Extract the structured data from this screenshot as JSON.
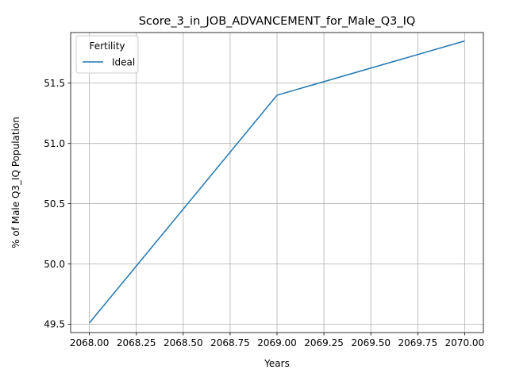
{
  "chart_data": {
    "type": "line",
    "title": "Score_3_in_JOB_ADVANCEMENT_for_Male_Q3_IQ",
    "xlabel": "Years",
    "ylabel": "% of Male Q3_IQ Population",
    "xlim": [
      2067.9,
      2070.1
    ],
    "ylim": [
      49.43,
      51.92
    ],
    "xticks": [
      2068.0,
      2068.25,
      2068.5,
      2068.75,
      2069.0,
      2069.25,
      2069.5,
      2069.75,
      2070.0
    ],
    "xtick_labels": [
      "2068.00",
      "2068.25",
      "2068.50",
      "2068.75",
      "2069.00",
      "2069.25",
      "2069.50",
      "2069.75",
      "2070.00"
    ],
    "yticks": [
      49.5,
      50.0,
      50.5,
      51.0,
      51.5
    ],
    "ytick_labels": [
      "49.5",
      "50.0",
      "50.5",
      "51.0",
      "51.5"
    ],
    "grid": true,
    "legend": {
      "title": "Fertility",
      "placement": "top-left"
    },
    "series": [
      {
        "name": "Ideal",
        "color": "#1f77b4",
        "x": [
          2068,
          2069,
          2070
        ],
        "y": [
          49.51,
          51.4,
          51.85
        ]
      }
    ]
  }
}
